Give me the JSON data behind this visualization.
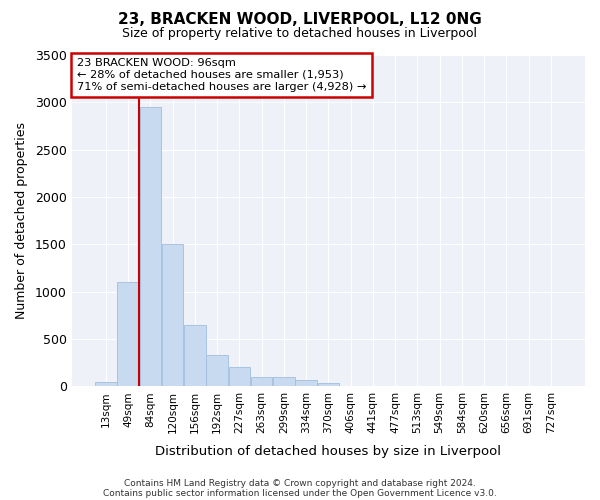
{
  "title": "23, BRACKEN WOOD, LIVERPOOL, L12 0NG",
  "subtitle": "Size of property relative to detached houses in Liverpool",
  "xlabel": "Distribution of detached houses by size in Liverpool",
  "ylabel": "Number of detached properties",
  "bar_color": "#c8daf0",
  "bar_edge_color": "#a0bedd",
  "bin_labels": [
    "13sqm",
    "49sqm",
    "84sqm",
    "120sqm",
    "156sqm",
    "192sqm",
    "227sqm",
    "263sqm",
    "299sqm",
    "334sqm",
    "370sqm",
    "406sqm",
    "441sqm",
    "477sqm",
    "513sqm",
    "549sqm",
    "584sqm",
    "620sqm",
    "656sqm",
    "691sqm",
    "727sqm"
  ],
  "bin_values": [
    50,
    1100,
    2950,
    1500,
    650,
    330,
    200,
    100,
    100,
    70,
    35,
    5,
    5,
    0,
    0,
    0,
    0,
    0,
    0,
    0,
    0
  ],
  "ylim": [
    0,
    3500
  ],
  "yticks": [
    0,
    500,
    1000,
    1500,
    2000,
    2500,
    3000,
    3500
  ],
  "property_line_bin_index": 2,
  "annotation_title": "23 BRACKEN WOOD: 96sqm",
  "annotation_line1": "← 28% of detached houses are smaller (1,953)",
  "annotation_line2": "71% of semi-detached houses are larger (4,928) →",
  "annotation_box_color": "#ffffff",
  "annotation_box_edge_color": "#cc0000",
  "vertical_line_color": "#cc0000",
  "footer_line1": "Contains HM Land Registry data © Crown copyright and database right 2024.",
  "footer_line2": "Contains public sector information licensed under the Open Government Licence v3.0.",
  "bg_color": "#eef2f8"
}
